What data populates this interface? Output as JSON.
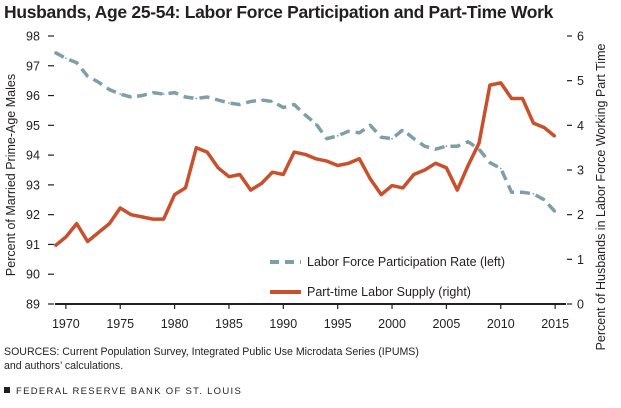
{
  "title": "Husbands, Age 25-54: Labor Force Participation and Part-Time Work",
  "source_line1": "SOURCES: Current Population Survey, Integrated Public Use Microdata Series (IPUMS)",
  "source_line2": "and authors’ calculations.",
  "footer": "FEDERAL RESERVE BANK OF ST. LOUIS",
  "colors": {
    "participation": "#7e9fa9",
    "part_time": "#c8502c",
    "text": "#231f20"
  },
  "chart_data": {
    "type": "line",
    "title": "Husbands, Age 25-54: Labor Force Participation and Part-Time Work",
    "xlabel": "",
    "ylabel_left": "Percent of Married Prime-Age Males",
    "ylabel_right": "Percent of Husbands in Labor Force Working Part Time",
    "xlim": [
      1969,
      2016
    ],
    "ylim_left": [
      89,
      98
    ],
    "ylim_right": [
      0,
      6
    ],
    "xticks": [
      "1970",
      "1975",
      "1980",
      "1985",
      "1990",
      "1995",
      "2000",
      "2005",
      "2010",
      "2015"
    ],
    "yticks_left": [
      "89",
      "90",
      "91",
      "92",
      "93",
      "94",
      "95",
      "96",
      "97",
      "98"
    ],
    "yticks_right": [
      "0",
      "1",
      "2",
      "3",
      "4",
      "5",
      "6"
    ],
    "grid": false,
    "legend_position": "bottom-right",
    "x": [
      1969,
      1970,
      1971,
      1972,
      1973,
      1974,
      1975,
      1976,
      1977,
      1978,
      1979,
      1980,
      1981,
      1982,
      1983,
      1984,
      1985,
      1986,
      1987,
      1988,
      1989,
      1990,
      1991,
      1992,
      1993,
      1994,
      1995,
      1996,
      1997,
      1998,
      1999,
      2000,
      2001,
      2002,
      2003,
      2004,
      2005,
      2006,
      2007,
      2008,
      2009,
      2010,
      2011,
      2012,
      2013,
      2014,
      2015
    ],
    "series": [
      {
        "name": "Labor Force Participation Rate (left)",
        "axis": "left",
        "style": "dashed",
        "values": [
          97.45,
          97.25,
          97.1,
          96.65,
          96.45,
          96.2,
          96.05,
          95.95,
          96.0,
          96.1,
          96.05,
          96.1,
          95.95,
          95.9,
          95.95,
          95.85,
          95.75,
          95.7,
          95.8,
          95.85,
          95.8,
          95.6,
          95.7,
          95.35,
          95.05,
          94.55,
          94.65,
          94.8,
          94.75,
          95.0,
          94.6,
          94.55,
          94.85,
          94.55,
          94.3,
          94.2,
          94.3,
          94.3,
          94.45,
          94.2,
          93.75,
          93.55,
          92.75,
          92.75,
          92.7,
          92.5,
          92.1
        ]
      },
      {
        "name": "Part-time Labor Supply (right)",
        "axis": "right",
        "style": "solid",
        "values": [
          1.3,
          1.5,
          1.8,
          1.4,
          1.6,
          1.8,
          2.15,
          2.0,
          1.95,
          1.9,
          1.9,
          2.45,
          2.6,
          3.5,
          3.4,
          3.05,
          2.85,
          2.9,
          2.55,
          2.7,
          2.95,
          2.9,
          3.4,
          3.35,
          3.25,
          3.2,
          3.1,
          3.15,
          3.25,
          2.8,
          2.45,
          2.65,
          2.6,
          2.9,
          3.0,
          3.15,
          3.05,
          2.55,
          3.1,
          3.6,
          4.9,
          4.95,
          4.6,
          4.6,
          4.05,
          3.95,
          3.75
        ]
      }
    ]
  }
}
